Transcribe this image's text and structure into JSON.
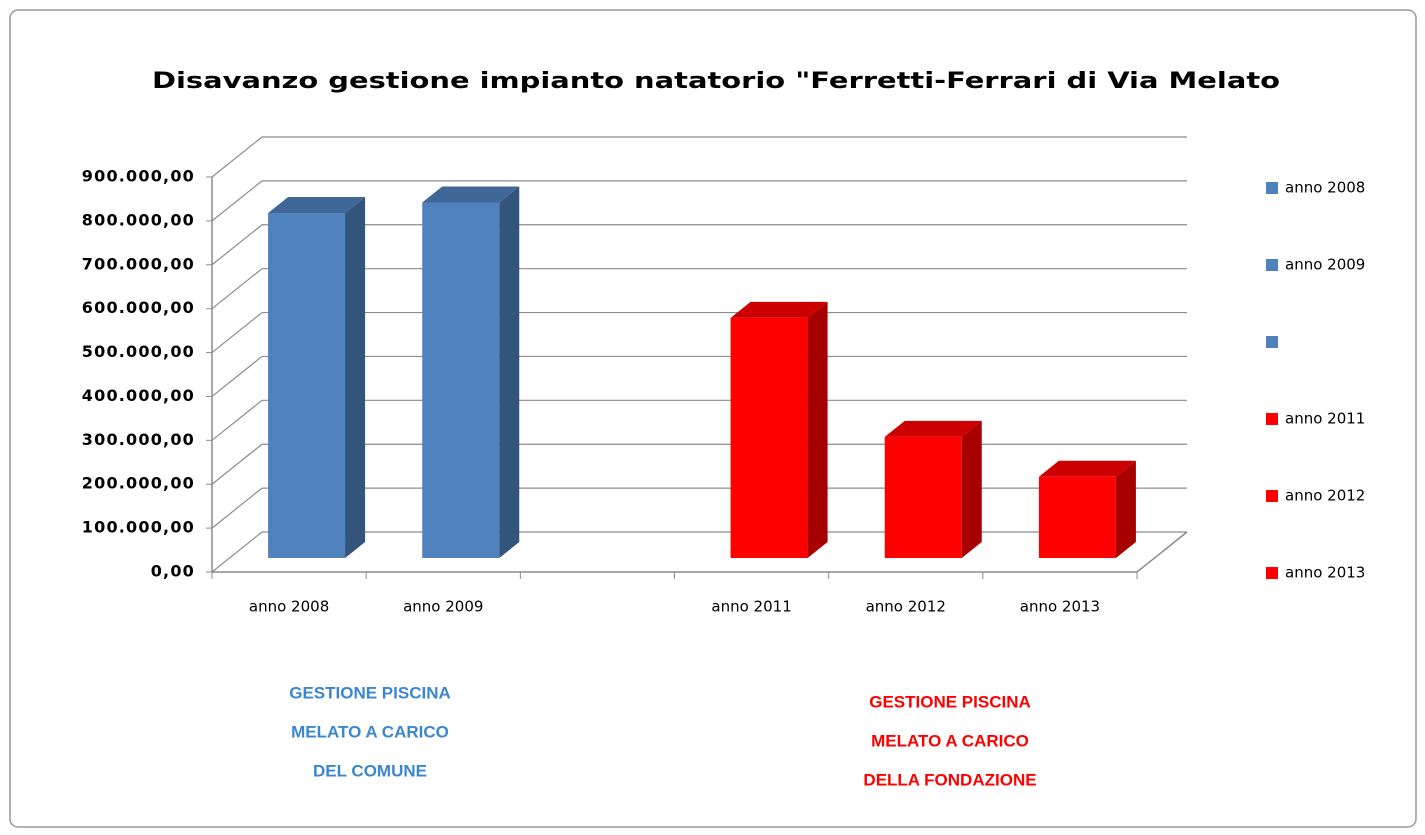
{
  "chart_data": {
    "type": "bar3d",
    "title": "Disavanzo gestione impianto natatorio \"Ferretti-Ferrari di Via Melato",
    "categories": [
      "anno 2008",
      "anno 2009",
      null,
      "anno 2011",
      "anno 2012",
      "anno 2013"
    ],
    "values": [
      786000,
      810000,
      null,
      547000,
      276000,
      185000
    ],
    "colors": [
      "#4f81bd",
      "#4f81bd",
      "#4f81bd",
      "#ff0000",
      "#ff0000",
      "#ff0000"
    ],
    "ylim": [
      0,
      900000
    ],
    "yticks": [
      {
        "value": 0,
        "label": "0,00"
      },
      {
        "value": 100000,
        "label": "100.000,00"
      },
      {
        "value": 200000,
        "label": "200.000,00"
      },
      {
        "value": 300000,
        "label": "300.000,00"
      },
      {
        "value": 400000,
        "label": "400.000,00"
      },
      {
        "value": 500000,
        "label": "500.000,00"
      },
      {
        "value": 600000,
        "label": "600.000,00"
      },
      {
        "value": 700000,
        "label": "700.000,00"
      },
      {
        "value": 800000,
        "label": "800.000,00"
      },
      {
        "value": 900000,
        "label": "900.000,00"
      }
    ],
    "grid": true,
    "legend": "right",
    "annotations": [
      {
        "lines": [
          "GESTIONE PISCINA",
          "MELATO A CARICO",
          "DEL COMUNE"
        ],
        "color": "#3a87d0"
      },
      {
        "lines": [
          "GESTIONE PISCINA",
          "MELATO A CARICO",
          "DELLA FONDAZIONE"
        ],
        "color": "#ff0000"
      }
    ]
  }
}
